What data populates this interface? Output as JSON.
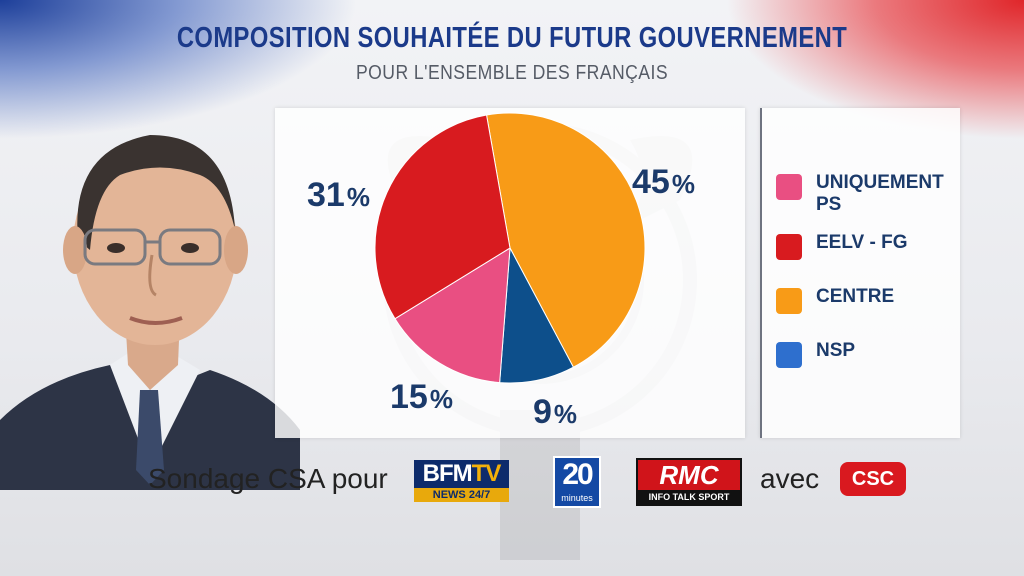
{
  "header": {
    "title": "COMPOSITION SOUHAITÉE DU FUTUR GOUVERNEMENT",
    "subtitle": "POUR L'ENSEMBLE DES FRANÇAIS"
  },
  "chart_data": {
    "type": "pie",
    "title": "COMPOSITION SOUHAITÉE DU FUTUR GOUVERNEMENT",
    "subtitle": "POUR L'ENSEMBLE DES FRANÇAIS",
    "categories": [
      "UNIQUEMENT PS",
      "EELV - FG",
      "CENTRE",
      "NSP"
    ],
    "values": [
      15,
      31,
      45,
      9
    ],
    "value_labels": [
      "15",
      "31",
      "45",
      "9"
    ],
    "unit": "%",
    "colors": [
      "#e94f82",
      "#d81b1f",
      "#f89b17",
      "#0d4f8b"
    ],
    "legend": "right"
  },
  "legend": {
    "items": [
      {
        "label": "UNIQUEMENT PS",
        "color": "#e94f82"
      },
      {
        "label": "EELV - FG",
        "color": "#d81b1f"
      },
      {
        "label": "CENTRE",
        "color": "#f89b17"
      },
      {
        "label": "NSP",
        "color": "#2e6fce"
      }
    ]
  },
  "footer": {
    "sondage_text": "Sondage CSA pour",
    "avec_text": "avec",
    "logos": {
      "bfm_top_a": "BFM",
      "bfm_top_b": "TV",
      "bfm_bottom": "NEWS 24/7",
      "vingt_num": "20",
      "vingt_sub": "minutes",
      "rmc_top": "RMC",
      "rmc_bottom": "INFO TALK SPORT",
      "csc": "CSC"
    }
  }
}
